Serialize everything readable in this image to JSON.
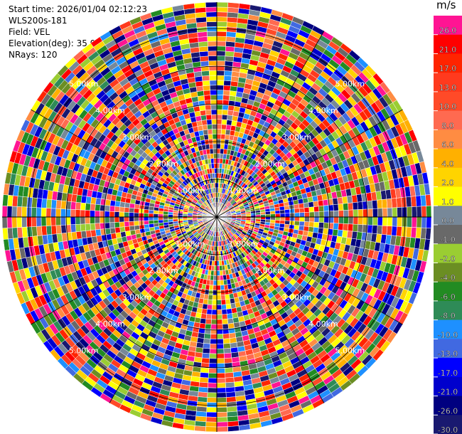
{
  "header": {
    "start_time": "Start time: 2026/01/04 02:12:23",
    "instrument": "WLS200s-181",
    "field": "Field: VEL",
    "elevation": "Elevation(deg): 35.00",
    "nrays": "NRays: 120"
  },
  "chart_data": {
    "type": "polar-ppi",
    "field": "VEL",
    "units": "m/s",
    "elevation_deg": 35.0,
    "nrays": 120,
    "range_rings_km": [
      1,
      2,
      3,
      4,
      5
    ],
    "range_ring_labels": [
      "1.00km",
      "2.00km",
      "3.00km",
      "4.00km",
      "5.00km"
    ],
    "max_range_km": 5.7,
    "colorbar": {
      "title": "m/s",
      "tick_labels": [
        "26.0",
        "21.0",
        "17.0",
        "13.0",
        "10.0",
        "8.0",
        "6.0",
        "4.0",
        "2.0",
        "1.0",
        "0.0",
        "-1.0",
        "-2.0",
        "-4.0",
        "-6.0",
        "-8.0",
        "-10.0",
        "-13.0",
        "-17.0",
        "-21.0",
        "-26.0",
        "-30.0"
      ],
      "colors": [
        "#ff1493",
        "#ff0000",
        "#ff2400",
        "#ff3a1e",
        "#ff4a28",
        "#ff6a50",
        "#ff8c42",
        "#ffb000",
        "#ffd400",
        "#ffff00",
        "#778899",
        "#696969",
        "#9acd32",
        "#6b8e23",
        "#228b22",
        "#2e8b57",
        "#1e90ff",
        "#4169e1",
        "#0000ff",
        "#0000cd",
        "#000080",
        "#191970"
      ]
    }
  }
}
